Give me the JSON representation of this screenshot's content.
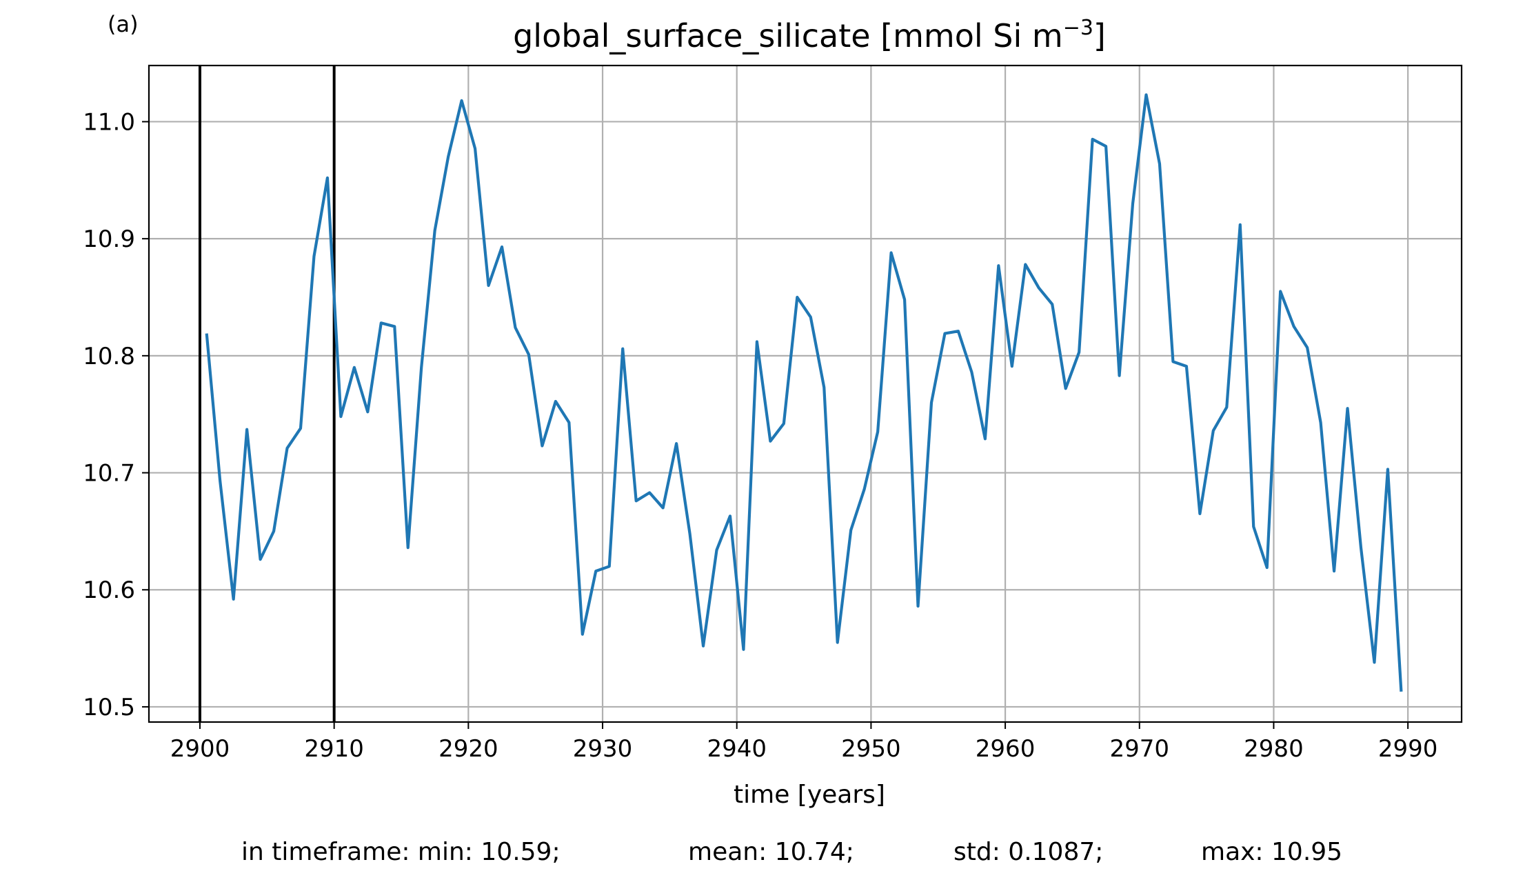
{
  "panel_label": "(a)",
  "chart_data": {
    "type": "line",
    "title": {
      "base": "global_surface_silicate [mmol Si m",
      "superscript": "−3",
      "suffix": "]"
    },
    "xlabel": "time [years]",
    "ylabel": "",
    "xlim": [
      2896.2,
      2994.0
    ],
    "ylim": [
      10.487,
      11.048
    ],
    "xticks": [
      2900,
      2910,
      2920,
      2930,
      2940,
      2950,
      2960,
      2970,
      2980,
      2990
    ],
    "xtick_labels": [
      "2900",
      "2910",
      "2920",
      "2930",
      "2940",
      "2950",
      "2960",
      "2970",
      "2980",
      "2990"
    ],
    "yticks": [
      10.5,
      10.6,
      10.7,
      10.8,
      10.9,
      11.0
    ],
    "ytick_labels": [
      "10.5",
      "10.6",
      "10.7",
      "10.8",
      "10.9",
      "11.0"
    ],
    "grid": true,
    "line_color": "#1f77b4",
    "vlines": [
      2900,
      2910
    ],
    "vline_color": "#000000",
    "series": [
      {
        "x": [
          2900.5,
          2901.5,
          2902.5,
          2903.5,
          2904.5,
          2905.5,
          2906.5,
          2907.5,
          2908.5,
          2909.5,
          2910.5,
          2911.5,
          2912.5,
          2913.5,
          2914.5,
          2915.5,
          2916.5,
          2917.5,
          2918.5,
          2919.5,
          2920.5,
          2921.5,
          2922.5,
          2923.5,
          2924.5,
          2925.5,
          2926.5,
          2927.5,
          2928.5,
          2929.5,
          2930.5,
          2931.5,
          2932.5,
          2933.5,
          2934.5,
          2935.5,
          2936.5,
          2937.5,
          2938.5,
          2939.5,
          2940.5,
          2941.5,
          2942.5,
          2943.5,
          2944.5,
          2945.5,
          2946.5,
          2947.5,
          2948.5,
          2949.5,
          2950.5,
          2951.5,
          2952.5,
          2953.5,
          2954.5,
          2955.5,
          2956.5,
          2957.5,
          2958.5,
          2959.5,
          2960.5,
          2961.5,
          2962.5,
          2963.5,
          2964.5,
          2965.5,
          2966.5,
          2967.5,
          2968.5,
          2969.5,
          2970.5,
          2971.5,
          2972.5,
          2973.5,
          2974.5,
          2975.5,
          2976.5,
          2977.5,
          2978.5,
          2979.5,
          2980.5,
          2981.5,
          2982.5,
          2983.5,
          2984.5,
          2985.5,
          2986.5,
          2987.5,
          2988.5,
          2989.5
        ],
        "y": [
          10.819,
          10.693,
          10.592,
          10.737,
          10.626,
          10.65,
          10.721,
          10.738,
          10.885,
          10.952,
          10.748,
          10.79,
          10.752,
          10.828,
          10.825,
          10.636,
          10.79,
          10.907,
          10.97,
          11.018,
          10.977,
          10.86,
          10.893,
          10.824,
          10.801,
          10.723,
          10.761,
          10.743,
          10.562,
          10.616,
          10.62,
          10.806,
          10.676,
          10.683,
          10.67,
          10.725,
          10.648,
          10.552,
          10.634,
          10.663,
          10.549,
          10.812,
          10.727,
          10.742,
          10.85,
          10.833,
          10.773,
          10.555,
          10.651,
          10.686,
          10.735,
          10.888,
          10.848,
          10.586,
          10.76,
          10.819,
          10.821,
          10.786,
          10.729,
          10.877,
          10.791,
          10.878,
          10.858,
          10.844,
          10.772,
          10.803,
          10.985,
          10.979,
          10.783,
          10.93,
          11.023,
          10.964,
          10.795,
          10.791,
          10.665,
          10.736,
          10.756,
          10.912,
          10.654,
          10.619,
          10.855,
          10.825,
          10.807,
          10.743,
          10.616,
          10.755,
          10.636,
          10.538,
          10.703,
          10.513
        ]
      }
    ]
  },
  "stats": {
    "min": "in timeframe: min: 10.59;",
    "mean": "mean: 10.74;",
    "std": "std: 0.1087;",
    "max": "max: 10.95"
  }
}
